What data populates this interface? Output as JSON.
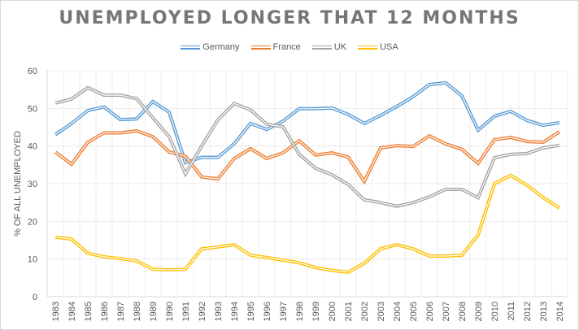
{
  "chart_data": {
    "type": "line",
    "title": "UNEMPLOYED LONGER THAT 12 MONTHS",
    "xlabel": "",
    "ylabel": "% OF ALL UNEMPLOYED",
    "ylim": [
      0,
      60
    ],
    "yticks": [
      0,
      10,
      20,
      30,
      40,
      50,
      60
    ],
    "grid": true,
    "legend_position": "top",
    "x": [
      "1983",
      "1984",
      "1985",
      "1986",
      "1987",
      "1988",
      "1989",
      "1990",
      "1991",
      "1992",
      "1993",
      "1994",
      "1995",
      "1996",
      "1997",
      "1998",
      "1999",
      "2000",
      "2001",
      "2002",
      "2003",
      "2004",
      "2005",
      "2006",
      "2007",
      "2008",
      "2009",
      "2010",
      "2011",
      "2012",
      "2013",
      "2014"
    ],
    "series": [
      {
        "name": "Germany",
        "color": "#5b9bd5",
        "values": [
          43.0,
          46.0,
          49.4,
          50.4,
          47.0,
          47.2,
          51.8,
          49.0,
          35.6,
          37.0,
          37.0,
          40.6,
          46.0,
          44.4,
          46.6,
          49.9,
          49.9,
          50.1,
          48.4,
          46.0,
          48.1,
          50.5,
          53.1,
          56.3,
          56.8,
          53.3,
          44.2,
          47.9,
          49.2,
          46.8,
          45.5,
          46.2
        ]
      },
      {
        "name": "France",
        "color": "#ed7d31",
        "values": [
          38.4,
          35.2,
          41.0,
          43.5,
          43.5,
          44.0,
          42.5,
          38.4,
          37.3,
          31.8,
          31.3,
          36.7,
          39.3,
          36.7,
          38.2,
          41.4,
          37.6,
          38.2,
          37.1,
          30.6,
          39.5,
          40.1,
          39.9,
          42.7,
          40.6,
          39.1,
          35.4,
          41.7,
          42.3,
          41.2,
          41.0,
          43.8
        ]
      },
      {
        "name": "UK",
        "color": "#a5a5a5",
        "values": [
          51.4,
          52.5,
          55.5,
          53.5,
          53.5,
          52.6,
          47.5,
          42.5,
          32.6,
          40.0,
          47.0,
          51.3,
          49.6,
          45.8,
          45.1,
          37.8,
          34.1,
          32.4,
          29.8,
          25.7,
          25.0,
          24.0,
          25.0,
          26.5,
          28.5,
          28.5,
          26.3,
          36.9,
          37.8,
          38.0,
          39.5,
          40.2
        ]
      },
      {
        "name": "USA",
        "color": "#ffc000",
        "values": [
          15.8,
          15.3,
          11.5,
          10.6,
          10.1,
          9.5,
          7.3,
          7.1,
          7.3,
          12.7,
          13.2,
          13.8,
          11.0,
          10.4,
          9.7,
          9.0,
          7.7,
          7.0,
          6.5,
          8.9,
          12.7,
          13.8,
          12.7,
          10.8,
          10.8,
          11.0,
          16.4,
          30.0,
          32.2,
          29.6,
          26.3,
          23.5
        ]
      }
    ]
  }
}
